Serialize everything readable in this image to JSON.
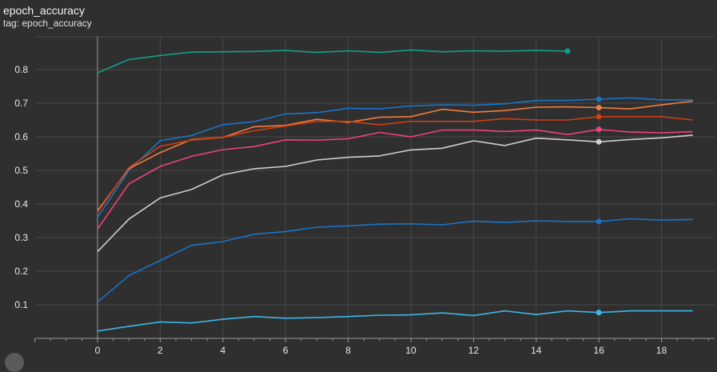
{
  "header": {
    "title": "epoch_accuracy",
    "tag": "tag: epoch_accuracy"
  },
  "chart_data": {
    "type": "line",
    "title": "epoch_accuracy",
    "xlabel": "",
    "ylabel": "",
    "xlim": [
      -2,
      19.5
    ],
    "ylim": [
      0,
      0.9
    ],
    "xticks": [
      0,
      2,
      4,
      6,
      8,
      10,
      12,
      14,
      16,
      18
    ],
    "yticks": [
      0.1,
      0.2,
      0.3,
      0.4,
      0.5,
      0.6,
      0.7,
      0.8
    ],
    "grid": true,
    "background": "#2f2f2f",
    "series": [
      {
        "color": "#12a08a",
        "marker_x": 15,
        "x": [
          0,
          1,
          2,
          3,
          4,
          5,
          6,
          7,
          8,
          9,
          10,
          11,
          12,
          13,
          14,
          15
        ],
        "values": [
          0.79,
          0.83,
          0.842,
          0.852,
          0.853,
          0.854,
          0.857,
          0.851,
          0.856,
          0.851,
          0.858,
          0.853,
          0.856,
          0.855,
          0.857,
          0.855
        ]
      },
      {
        "color": "#1a73c8",
        "marker_x": 16,
        "x": [
          0,
          1,
          2,
          3,
          4,
          5,
          6,
          7,
          8,
          9,
          10,
          11,
          12,
          13,
          14,
          15,
          16,
          17,
          18,
          19
        ],
        "values": [
          0.36,
          0.5,
          0.588,
          0.604,
          0.636,
          0.645,
          0.668,
          0.672,
          0.685,
          0.683,
          0.692,
          0.695,
          0.694,
          0.698,
          0.708,
          0.708,
          0.712,
          0.716,
          0.71,
          0.71
        ]
      },
      {
        "color": "#f47c3c",
        "marker_x": 16,
        "x": [
          0,
          1,
          2,
          3,
          4,
          5,
          6,
          7,
          8,
          9,
          10,
          11,
          12,
          13,
          14,
          15,
          16,
          17,
          18,
          19
        ],
        "values": [
          0.38,
          0.505,
          0.553,
          0.592,
          0.598,
          0.63,
          0.634,
          0.652,
          0.643,
          0.658,
          0.66,
          0.682,
          0.673,
          0.678,
          0.688,
          0.689,
          0.687,
          0.683,
          0.695,
          0.706
        ]
      },
      {
        "color": "#cc3f12",
        "marker_x": 16,
        "x": [
          0,
          1,
          2,
          3,
          4,
          5,
          6,
          7,
          8,
          9,
          10,
          11,
          12,
          13,
          14,
          15,
          16,
          17,
          18,
          19
        ],
        "values": [
          0.375,
          0.508,
          0.572,
          0.59,
          0.598,
          0.618,
          0.632,
          0.646,
          0.646,
          0.636,
          0.646,
          0.646,
          0.646,
          0.654,
          0.65,
          0.65,
          0.66,
          0.66,
          0.66,
          0.65
        ]
      },
      {
        "color": "#ec4280",
        "marker_x": 16,
        "x": [
          0,
          1,
          2,
          3,
          4,
          5,
          6,
          7,
          8,
          9,
          10,
          11,
          12,
          13,
          14,
          15,
          16,
          17,
          18,
          19
        ],
        "values": [
          0.325,
          0.46,
          0.512,
          0.542,
          0.562,
          0.571,
          0.591,
          0.59,
          0.594,
          0.613,
          0.6,
          0.62,
          0.62,
          0.616,
          0.62,
          0.607,
          0.622,
          0.614,
          0.612,
          0.615
        ]
      },
      {
        "color": "#cfcfcf",
        "marker_x": 16,
        "x": [
          0,
          1,
          2,
          3,
          4,
          5,
          6,
          7,
          8,
          9,
          10,
          11,
          12,
          13,
          14,
          15,
          16,
          17,
          18,
          19
        ],
        "values": [
          0.258,
          0.355,
          0.418,
          0.443,
          0.487,
          0.505,
          0.512,
          0.531,
          0.539,
          0.543,
          0.561,
          0.566,
          0.588,
          0.574,
          0.596,
          0.591,
          0.585,
          0.592,
          0.597,
          0.605
        ]
      },
      {
        "color": "#1a73c8",
        "marker_x": 16,
        "x": [
          0,
          1,
          2,
          3,
          4,
          5,
          6,
          7,
          8,
          9,
          10,
          11,
          12,
          13,
          14,
          15,
          16,
          17,
          18,
          19
        ],
        "values": [
          0.108,
          0.187,
          0.232,
          0.277,
          0.288,
          0.31,
          0.318,
          0.331,
          0.335,
          0.34,
          0.341,
          0.338,
          0.349,
          0.345,
          0.35,
          0.348,
          0.348,
          0.356,
          0.352,
          0.354
        ]
      },
      {
        "color": "#3bb8e8",
        "marker_x": 16,
        "x": [
          0,
          1,
          2,
          3,
          4,
          5,
          6,
          7,
          8,
          9,
          10,
          11,
          12,
          13,
          14,
          15,
          16,
          17,
          18,
          19
        ],
        "values": [
          0.022,
          0.036,
          0.049,
          0.046,
          0.057,
          0.065,
          0.06,
          0.062,
          0.065,
          0.069,
          0.07,
          0.076,
          0.068,
          0.082,
          0.071,
          0.082,
          0.077,
          0.082,
          0.082,
          0.082
        ]
      }
    ]
  }
}
